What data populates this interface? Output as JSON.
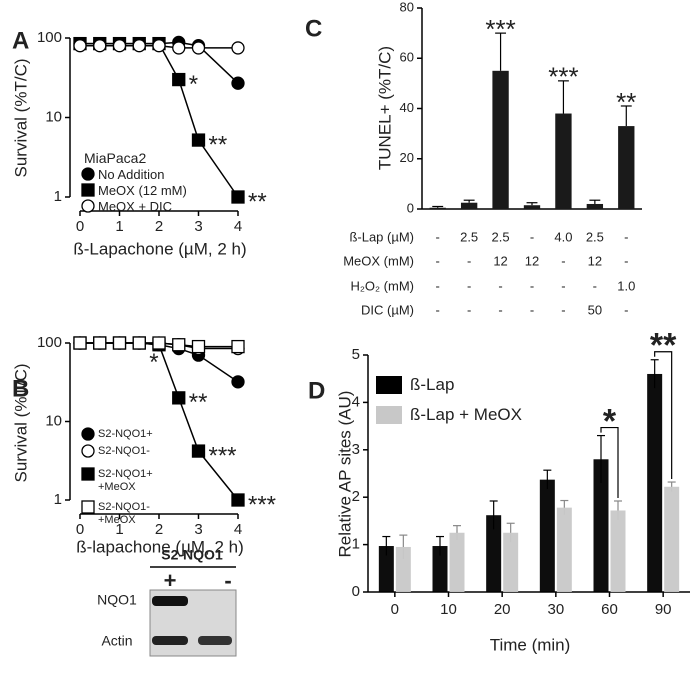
{
  "chart_data": [
    {
      "type": "line",
      "panel": "A",
      "log_y": true,
      "x": [
        0,
        0.5,
        1,
        1.5,
        2,
        2.5,
        3,
        4
      ],
      "xlim": [
        0,
        4
      ],
      "xticks": [
        0,
        1,
        2,
        3,
        4
      ],
      "ylim": [
        1,
        100
      ],
      "yticks": [
        1,
        10,
        100
      ],
      "xlabel": "ß-Lapachone (µM, 2 h)",
      "ylabel": "Survival (%T/C)",
      "legend_title": "MiaPaca2",
      "series": [
        {
          "name": "No Addition",
          "color": "#000000",
          "marker": "circle",
          "marker_fill": "#000000",
          "values": [
            85,
            85,
            85,
            85,
            85,
            88,
            80,
            27
          ]
        },
        {
          "name": "MeOX (12 mM)",
          "color": "#000000",
          "marker": "square",
          "marker_fill": "#000000",
          "values": [
            85,
            85,
            85,
            85,
            85,
            30,
            5.2,
            1
          ]
        },
        {
          "name": "MeOX + DIC",
          "color": "#000000",
          "marker": "circle",
          "marker_fill": "#ffffff",
          "values": [
            80,
            80,
            80,
            80,
            80,
            75,
            75,
            75
          ]
        }
      ],
      "annotations": [
        {
          "text": "*",
          "x": 2.5,
          "y": 30
        },
        {
          "text": "**",
          "x": 3,
          "y": 5.2
        },
        {
          "text": "**",
          "x": 4,
          "y": 1
        }
      ]
    },
    {
      "type": "line",
      "panel": "B",
      "log_y": true,
      "x": [
        0,
        0.5,
        1,
        1.5,
        2,
        2.5,
        3,
        4
      ],
      "xlim": [
        0,
        4
      ],
      "xticks": [
        0,
        1,
        2,
        3,
        4
      ],
      "ylim": [
        1,
        100
      ],
      "yticks": [
        1,
        10,
        100
      ],
      "xlabel": "ß-lapachone (µM, 2 h)",
      "ylabel": "Survival (%T/C)",
      "series": [
        {
          "name": "S2-NQO1+",
          "color": "#000000",
          "marker": "circle",
          "marker_fill": "#000000",
          "values": [
            100,
            100,
            100,
            100,
            95,
            85,
            70,
            32
          ]
        },
        {
          "name": "S2-NQO1-",
          "color": "#000000",
          "marker": "circle",
          "marker_fill": "#ffffff",
          "values": [
            100,
            100,
            100,
            100,
            100,
            95,
            85,
            85
          ]
        },
        {
          "name": "S2-NQO1+\n+MeOX",
          "color": "#000000",
          "marker": "square",
          "marker_fill": "#000000",
          "values": [
            100,
            100,
            100,
            100,
            95,
            20,
            4.2,
            1
          ]
        },
        {
          "name": "S2-NQO1-\n+MeOX",
          "color": "#000000",
          "marker": "square",
          "marker_fill": "#ffffff",
          "values": [
            100,
            100,
            100,
            100,
            100,
            95,
            90,
            90
          ]
        }
      ],
      "annotations": [
        {
          "text": "*",
          "x": 1.5,
          "y": 65
        },
        {
          "text": "**",
          "x": 2.5,
          "y": 20
        },
        {
          "text": "***",
          "x": 3,
          "y": 4.2
        },
        {
          "text": "***",
          "x": 4,
          "y": 1
        }
      ]
    },
    {
      "type": "bar",
      "panel": "C",
      "categories": [
        null,
        null,
        null,
        null,
        null,
        null,
        null
      ],
      "values": [
        0.5,
        2.5,
        55,
        1.5,
        38,
        2,
        33
      ],
      "errors": [
        0.5,
        1,
        15,
        1,
        13,
        1.5,
        8
      ],
      "color": "#1a1a1a",
      "ylim": [
        0,
        80
      ],
      "yticks": [
        0,
        20,
        40,
        60,
        80
      ],
      "ylabel": "TUNEL+ (%T/C)",
      "annotations": [
        {
          "text": "***",
          "index": 2
        },
        {
          "text": "***",
          "index": 4
        },
        {
          "text": "**",
          "index": 6
        }
      ],
      "conditions": [
        {
          "label": "ß-Lap (µM)",
          "cells": [
            "-",
            "2.5",
            "2.5",
            "-",
            "4.0",
            "2.5",
            "-"
          ]
        },
        {
          "label": "MeOX (mM)",
          "cells": [
            "-",
            "-",
            "12",
            "12",
            "-",
            "12",
            "-"
          ]
        },
        {
          "label": "H₂O₂ (mM)",
          "cells": [
            "-",
            "-",
            "-",
            "-",
            "-",
            "-",
            "1.0"
          ]
        },
        {
          "label": "DIC (µM)",
          "cells": [
            "-",
            "-",
            "-",
            "-",
            "-",
            "50",
            "-"
          ]
        }
      ]
    },
    {
      "type": "grouped_bar",
      "panel": "D",
      "categories": [
        "0",
        "10",
        "20",
        "30",
        "60",
        "90"
      ],
      "series": [
        {
          "name": "ß-Lap",
          "color": "#000000",
          "values": [
            0.97,
            0.97,
            1.62,
            2.37,
            2.8,
            4.6
          ],
          "errors": [
            0.2,
            0.2,
            0.3,
            0.2,
            0.5,
            0.3
          ]
        },
        {
          "name": "ß-Lap + MeOX",
          "color": "#c8c8c8",
          "values": [
            0.95,
            1.25,
            1.25,
            1.78,
            1.72,
            2.22
          ],
          "errors": [
            0.25,
            0.15,
            0.2,
            0.15,
            0.2,
            0.1
          ]
        }
      ],
      "ylim": [
        0,
        5
      ],
      "yticks": [
        0,
        1,
        2,
        3,
        4,
        5
      ],
      "xlabel": "Time (min)",
      "ylabel": "Relative AP sites (AU)",
      "annotations": [
        {
          "text": "*",
          "category": "60"
        },
        {
          "text": "**",
          "category": "90"
        }
      ]
    }
  ],
  "blot": {
    "title": "S2-NQO1",
    "lanes": [
      "+",
      "-"
    ],
    "rows": [
      "NQO1",
      "Actin"
    ]
  }
}
